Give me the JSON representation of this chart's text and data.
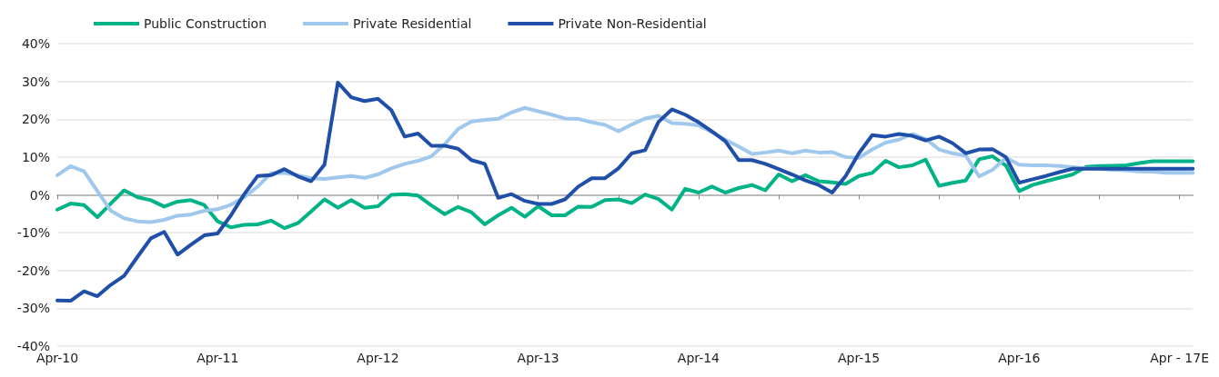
{
  "chart_data": {
    "type": "line",
    "categories": [
      "Apr-10",
      null,
      null,
      null,
      null,
      null,
      null,
      null,
      null,
      null,
      null,
      null,
      "Apr-11",
      null,
      null,
      null,
      null,
      null,
      null,
      null,
      null,
      null,
      null,
      null,
      "Apr-12",
      null,
      null,
      null,
      null,
      null,
      null,
      null,
      null,
      null,
      null,
      null,
      "Apr-13",
      null,
      null,
      null,
      null,
      null,
      null,
      null,
      null,
      null,
      null,
      null,
      "Apr-14",
      null,
      null,
      null,
      null,
      null,
      null,
      null,
      null,
      null,
      null,
      null,
      "Apr-15",
      null,
      null,
      null,
      null,
      null,
      null,
      null,
      null,
      null,
      null,
      null,
      "Apr-16",
      null,
      null,
      null,
      null,
      null,
      null,
      null,
      null,
      null,
      null,
      null,
      "Apr - 17E",
      null
    ],
    "series": [
      {
        "name": "Public Construction",
        "color": "#00b386",
        "values": [
          -3.9,
          -2.3,
          -2.7,
          -5.9,
          -2.3,
          1.2,
          -0.6,
          -1.4,
          -3.1,
          -1.8,
          -1.4,
          -2.7,
          -7,
          -8.6,
          -7.9,
          -7.8,
          -6.8,
          -8.8,
          -7.5,
          -4.4,
          -1.2,
          -3.4,
          -1.4,
          -3.4,
          -3,
          0,
          0.2,
          -0.2,
          -2.8,
          -5.1,
          -3.2,
          -4.6,
          -7.8,
          -5.4,
          -3.4,
          -5.8,
          -3,
          -5.4,
          -5.4,
          -3.1,
          -3.2,
          -1.4,
          -1.2,
          -2.2,
          0.1,
          -1.1,
          -3.9,
          1.6,
          0.6,
          2.2,
          0.6,
          1.8,
          2.6,
          1.2,
          5.4,
          3.6,
          5.2,
          3.6,
          3.3,
          2.9,
          5,
          5.8,
          9,
          7.3,
          7.8,
          9.3,
          2.4,
          3.2,
          3.8,
          9.4,
          10.2,
          7.8,
          1,
          2.6,
          3.6,
          4.5,
          5.4,
          7.4,
          7.6,
          7.7,
          7.8,
          8.4,
          8.9,
          8.9,
          8.9,
          8.9
        ]
      },
      {
        "name": "Private Residential",
        "color": "#9fc8ec",
        "values": [
          5.2,
          7.6,
          6.2,
          1,
          -4.2,
          -6.2,
          -7,
          -7.2,
          -6.6,
          -5.5,
          -5.2,
          -4.2,
          -3.8,
          -2.6,
          -0.6,
          2.2,
          5.7,
          5.8,
          5.2,
          4.4,
          4.2,
          4.6,
          5,
          4.5,
          5.4,
          7,
          8.2,
          9,
          10.2,
          13.4,
          17.4,
          19.4,
          19.8,
          20.1,
          21.8,
          23,
          22.1,
          21.2,
          20.2,
          20.1,
          19.2,
          18.5,
          16.8,
          18.6,
          20.2,
          20.9,
          19,
          18.8,
          18.4,
          16.6,
          14.6,
          12.8,
          10.8,
          11.2,
          11.7,
          11,
          11.7,
          11.2,
          11.3,
          10,
          9.8,
          12,
          13.8,
          14.6,
          16.1,
          14.8,
          12,
          11,
          10.4,
          4.9,
          6.6,
          9.8,
          8,
          7.8,
          7.8,
          7.6,
          7.3,
          7,
          6.9,
          6.6,
          6.5,
          6.2,
          6.1,
          5.8,
          5.8,
          5.8
        ]
      },
      {
        "name": "Private Non-Residential",
        "color": "#1f4fa8",
        "values": [
          -27.9,
          -28,
          -25.5,
          -26.8,
          -23.8,
          -21.4,
          -16.4,
          -11.5,
          -9.8,
          -15.8,
          -13.2,
          -10.7,
          -10.2,
          -5.4,
          0.2,
          5,
          5.2,
          6.8,
          4.9,
          3.6,
          8,
          29.7,
          25.8,
          24.8,
          25.4,
          22.4,
          15.4,
          16.2,
          13,
          13,
          12.2,
          9.2,
          8.2,
          -0.8,
          0.2,
          -1.6,
          -2.4,
          -2.4,
          -1.2,
          2.2,
          4.4,
          4.4,
          7,
          11,
          11.8,
          19.3,
          22.6,
          21.2,
          19.2,
          16.8,
          14.2,
          9.2,
          9.2,
          8.2,
          6.8,
          5.4,
          3.8,
          2.6,
          0.6,
          4.9,
          11,
          15.8,
          15.4,
          16.1,
          15.6,
          14.4,
          15.4,
          13.7,
          11,
          12,
          12.1,
          10,
          3.2,
          4.1,
          5,
          6,
          6.9,
          6.9,
          6.9,
          6.9,
          6.9,
          6.9,
          6.9,
          6.9,
          6.9,
          6.9
        ]
      }
    ],
    "ylim": [
      -40,
      40
    ],
    "yticks": [
      {
        "value": -40,
        "label": "-40%"
      },
      {
        "value": -30,
        "label": "-30%"
      },
      {
        "value": -20,
        "label": "-20%"
      },
      {
        "value": -10,
        "label": "-10%"
      },
      {
        "value": 0,
        "label": "0%"
      },
      {
        "value": 10,
        "label": "10%"
      },
      {
        "value": 20,
        "label": "20%"
      },
      {
        "value": 30,
        "label": "30%"
      },
      {
        "value": 40,
        "label": "40%"
      }
    ],
    "grid": "y",
    "legend": "top left",
    "marker": "none",
    "line_style": "solid"
  }
}
